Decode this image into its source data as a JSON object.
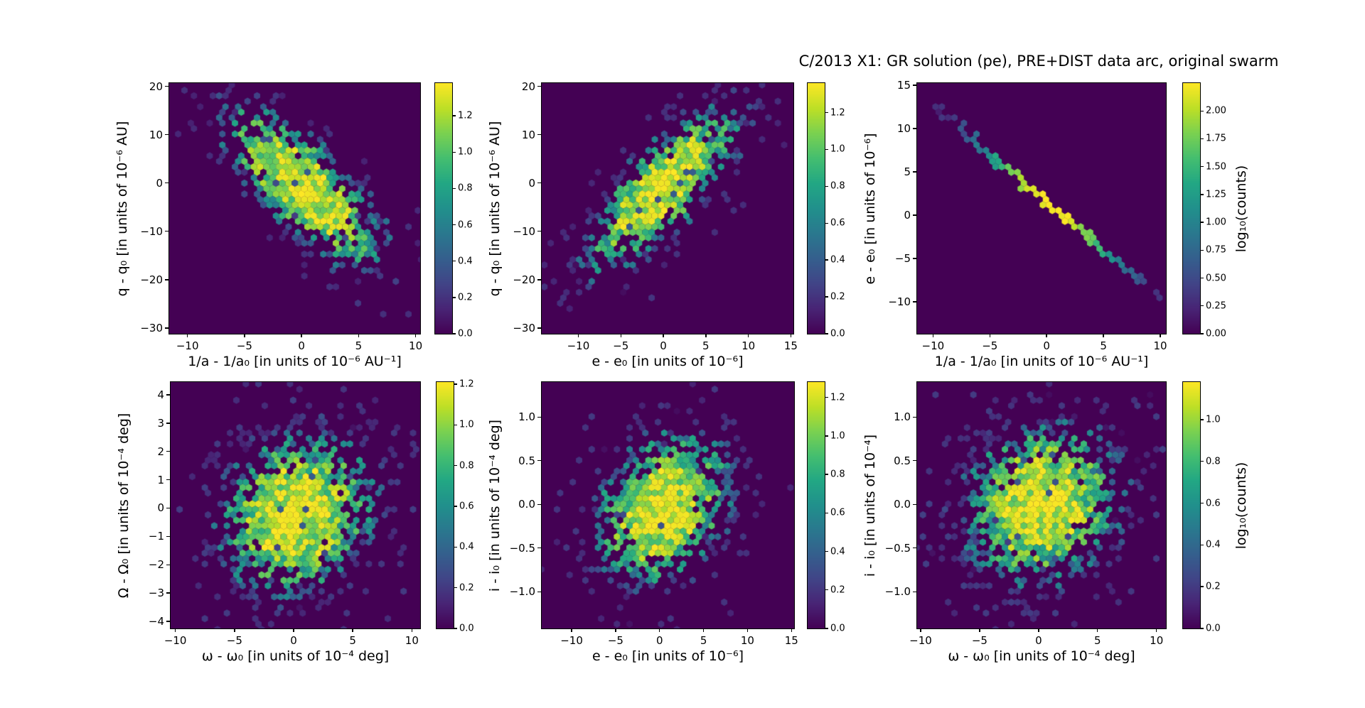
{
  "title": "C/2013 X1: GR solution (pe), PRE+DIST data arc, original swarm",
  "colors": {
    "figure_bg": "#ffffff",
    "axes_bg": "#440154",
    "viridis_min": "#440154",
    "viridis_max": "#fde725",
    "text": "#000000"
  },
  "chart_data": [
    {
      "type": "hexbin",
      "colormap": "viridis",
      "xlabel": "1/a - 1/a₀ [in units of 10⁻⁶ AU⁻¹]",
      "ylabel": "q - q₀ [in units of 10⁻⁶ AU]",
      "xticks": {
        "values": [
          -10,
          -5,
          0,
          5,
          10
        ],
        "labels": [
          "−10",
          "−5",
          "0",
          "5",
          "10"
        ]
      },
      "yticks": {
        "values": [
          20,
          10,
          0,
          -10,
          -20,
          -30
        ],
        "labels": [
          "20",
          "10",
          "0",
          "−10",
          "−20",
          "−30"
        ]
      },
      "xlim": [
        -11.6,
        10.4
      ],
      "ylim": [
        -31.2,
        20.7
      ],
      "colorbar": {
        "tick_labels": [
          "0.0",
          "0.2",
          "0.4",
          "0.6",
          "0.8",
          "1.0",
          "1.2"
        ],
        "tick_values": [
          0,
          0.2,
          0.4,
          0.6,
          0.8,
          1.0,
          1.2
        ],
        "vmax": 1.38
      },
      "distribution": {
        "kind": "gauss2d",
        "cx": 0.2,
        "cy": -0.8,
        "sx": 3.6,
        "sy": 8.4,
        "rho": -0.75,
        "peak": 1.38,
        "note": "anticorrelated elongated cloud"
      }
    },
    {
      "type": "hexbin",
      "colormap": "viridis",
      "xlabel": "e - e₀ [in units of 10⁻⁶]",
      "ylabel": "q - q₀ [in units of 10⁻⁶ AU]",
      "xticks": {
        "values": [
          -10,
          -5,
          0,
          5,
          10,
          15
        ],
        "labels": [
          "−10",
          "−5",
          "0",
          "5",
          "10",
          "15"
        ]
      },
      "yticks": {
        "values": [
          20,
          10,
          0,
          -10,
          -20,
          -30
        ],
        "labels": [
          "20",
          "10",
          "0",
          "−10",
          "−20",
          "−30"
        ]
      },
      "xlim": [
        -14.3,
        15.3
      ],
      "ylim": [
        -31.2,
        20.7
      ],
      "colorbar": {
        "tick_labels": [
          "0.0",
          "0.2",
          "0.4",
          "0.6",
          "0.8",
          "1.0",
          "1.2"
        ],
        "tick_values": [
          0,
          0.2,
          0.4,
          0.6,
          0.8,
          1.0,
          1.2
        ],
        "vmax": 1.36
      },
      "distribution": {
        "kind": "gauss2d",
        "cx": 0.0,
        "cy": -1.0,
        "sx": 4.6,
        "sy": 8.6,
        "rho": 0.78,
        "peak": 1.36,
        "note": "correlated elongated cloud"
      }
    },
    {
      "type": "hexbin",
      "colormap": "viridis",
      "xlabel": "1/a - 1/a₀ [in units of 10⁻⁶ AU⁻¹]",
      "ylabel": "e - e₀ [in units of 10⁻⁶]",
      "xticks": {
        "values": [
          -10,
          -5,
          0,
          5,
          10
        ],
        "labels": [
          "−10",
          "−5",
          "0",
          "5",
          "10"
        ]
      },
      "yticks": {
        "values": [
          15,
          10,
          5,
          0,
          -5,
          -10
        ],
        "labels": [
          "15",
          "10",
          "5",
          "0",
          "−5",
          "−10"
        ]
      },
      "xlim": [
        -11.4,
        10.5
      ],
      "ylim": [
        -13.7,
        15.25
      ],
      "colorbar": {
        "tick_labels": [
          "0.00",
          "0.25",
          "0.50",
          "0.75",
          "1.00",
          "1.25",
          "1.50",
          "1.75",
          "2.00"
        ],
        "tick_values": [
          0,
          0.25,
          0.5,
          0.75,
          1.0,
          1.25,
          1.5,
          1.75,
          2.0
        ],
        "vmax": 2.25,
        "label": "log₁₀(counts)"
      },
      "distribution": {
        "kind": "line",
        "slope": -1.1,
        "intercept": 1.55,
        "x0": 0.4,
        "sigma_along": 4.7,
        "sigma_perp": 0.42,
        "peak": 2.25,
        "xrange": [
          -9.9,
          10.5
        ],
        "note": "tight anticorrelated diagonal ridge"
      }
    },
    {
      "type": "hexbin",
      "colormap": "viridis",
      "xlabel": "ω - ω₀ [in units of 10⁻⁴ deg]",
      "ylabel": "Ω - Ω₀ [in units of 10⁻⁴ deg]",
      "xticks": {
        "values": [
          -10,
          -5,
          0,
          5,
          10
        ],
        "labels": [
          "−10",
          "−5",
          "0",
          "5",
          "10"
        ]
      },
      "yticks": {
        "values": [
          4,
          3,
          2,
          1,
          0,
          -1,
          -2,
          -3,
          -4
        ],
        "labels": [
          "4",
          "3",
          "2",
          "1",
          "0",
          "−1",
          "−2",
          "−3",
          "−4"
        ]
      },
      "xlim": [
        -10.4,
        10.7
      ],
      "ylim": [
        -4.25,
        4.45
      ],
      "colorbar": {
        "tick_labels": [
          "0.0",
          "0.2",
          "0.4",
          "0.6",
          "0.8",
          "1.0",
          "1.2"
        ],
        "tick_values": [
          0,
          0.2,
          0.4,
          0.6,
          0.8,
          1.0,
          1.2
        ],
        "vmax": 1.21
      },
      "distribution": {
        "kind": "gauss2d",
        "cx": 0.3,
        "cy": -0.2,
        "sx": 3.4,
        "sy": 1.5,
        "rho": 0.12,
        "peak": 1.21,
        "note": "round speckled cloud"
      }
    },
    {
      "type": "hexbin",
      "colormap": "viridis",
      "xlabel": "e - e₀ [in units of 10⁻⁶]",
      "ylabel": "i - i₀ [in units of 10⁻⁴ deg]",
      "xticks": {
        "values": [
          -10,
          -5,
          0,
          5,
          10,
          15
        ],
        "labels": [
          "−10",
          "−5",
          "0",
          "5",
          "10",
          "15"
        ]
      },
      "yticks": {
        "values": [
          1.0,
          0.5,
          0.0,
          -0.5,
          -1.0
        ],
        "labels": [
          "1.0",
          "0.5",
          "0.0",
          "−0.5",
          "−1.0"
        ]
      },
      "xlim": [
        -13.4,
        15.3
      ],
      "ylim": [
        -1.42,
        1.4
      ],
      "colorbar": {
        "tick_labels": [
          "0.0",
          "0.2",
          "0.4",
          "0.6",
          "0.8",
          "1.0",
          "1.2"
        ],
        "tick_values": [
          0,
          0.2,
          0.4,
          0.6,
          0.8,
          1.0,
          1.2
        ],
        "vmax": 1.28
      },
      "distribution": {
        "kind": "gauss2d",
        "cx": 0.3,
        "cy": -0.05,
        "sx": 4.0,
        "sy": 0.45,
        "rho": 0.3,
        "peak": 1.28,
        "note": "round speckled cloud"
      }
    },
    {
      "type": "hexbin",
      "colormap": "viridis",
      "xlabel": "ω - ω₀ [in units of 10⁻⁴ deg]",
      "ylabel": "i - i₀ [in units of 10⁻⁴]",
      "xticks": {
        "values": [
          -10,
          -5,
          0,
          5,
          10
        ],
        "labels": [
          "−10",
          "−5",
          "0",
          "5",
          "10"
        ]
      },
      "yticks": {
        "values": [
          1.0,
          0.5,
          0.0,
          -0.5,
          -1.0
        ],
        "labels": [
          "1.0",
          "0.5",
          "0.0",
          "−0.5",
          "−1.0"
        ]
      },
      "xlim": [
        -10.3,
        10.8
      ],
      "ylim": [
        -1.42,
        1.4
      ],
      "colorbar": {
        "tick_labels": [
          "0.0",
          "0.2",
          "0.4",
          "0.6",
          "0.8",
          "1.0"
        ],
        "tick_values": [
          0,
          0.2,
          0.4,
          0.6,
          0.8,
          1.0
        ],
        "vmax": 1.18,
        "label": "log₁₀(counts)"
      },
      "distribution": {
        "kind": "gauss2d",
        "cx": 0.2,
        "cy": 0.0,
        "sx": 3.5,
        "sy": 0.48,
        "rho": 0.12,
        "peak": 1.18,
        "note": "round speckled cloud"
      }
    }
  ]
}
